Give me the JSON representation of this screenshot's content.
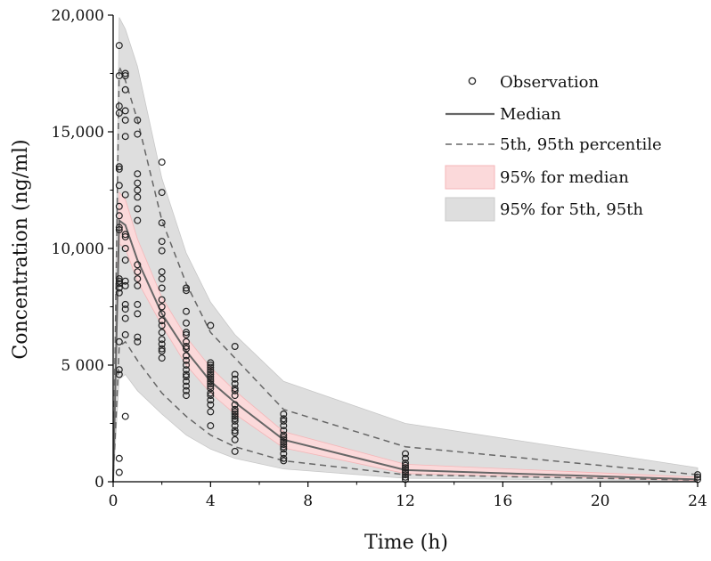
{
  "chart_data": {
    "type": "line",
    "xlabel": "Time (h)",
    "ylabel": "Concentration (ng/ml)",
    "xlim": [
      0,
      24
    ],
    "ylim": [
      0,
      20000
    ],
    "x_ticks": [
      0,
      4,
      8,
      12,
      16,
      20,
      24
    ],
    "x_tick_labels": [
      "0",
      "4",
      "8",
      "12",
      "16",
      "20",
      "24"
    ],
    "y_ticks": [
      0,
      5000,
      10000,
      15000,
      20000
    ],
    "y_tick_labels": [
      "0",
      "5 000",
      "10,000",
      "15,000",
      "20,000"
    ],
    "grid": false,
    "legend_position": "top-right",
    "legend": {
      "observation": "Observation",
      "median": "Median",
      "percentile": "5th, 95th percentile",
      "median_ci": "95% for median",
      "percentile_ci": "95% for 5th, 95th"
    },
    "colors": {
      "median_ci_fill": "#fbd9da",
      "median_ci_stroke": "#f4b6b8",
      "percentile_ci_fill": "#dedede",
      "percentile_ci_stroke": "#c8c8c8",
      "line": "#666666",
      "marker": "#222222"
    },
    "median": {
      "x": [
        0,
        0.25,
        0.5,
        1,
        2,
        3,
        4,
        5,
        7,
        12,
        24
      ],
      "y": [
        0,
        11200,
        11000,
        9500,
        7200,
        5600,
        4300,
        3400,
        1800,
        500,
        100
      ]
    },
    "p5": {
      "x": [
        0,
        0.25,
        0.5,
        1,
        2,
        3,
        4,
        5,
        7,
        12,
        24
      ],
      "y": [
        0,
        5800,
        6000,
        5200,
        3800,
        2800,
        2000,
        1500,
        900,
        300,
        70
      ]
    },
    "p95": {
      "x": [
        0,
        0.25,
        0.5,
        1,
        2,
        3,
        4,
        5,
        7,
        12,
        24
      ],
      "y": [
        0,
        17800,
        17200,
        15500,
        11200,
        8500,
        6400,
        5300,
        3100,
        1500,
        300
      ]
    },
    "median_ci": {
      "x": [
        0,
        0.25,
        0.5,
        1,
        2,
        3,
        4,
        5,
        7,
        12,
        24
      ],
      "lower": [
        0,
        10200,
        10000,
        8600,
        6700,
        5000,
        3800,
        2900,
        1450,
        350,
        50
      ],
      "upper": [
        0,
        12400,
        12100,
        10400,
        7900,
        6200,
        4900,
        3900,
        2150,
        750,
        200
      ]
    },
    "percentile_ci": {
      "p5_lower": [
        0,
        4400,
        4600,
        3900,
        2900,
        2000,
        1400,
        1000,
        550,
        150,
        20
      ],
      "p5_upper": [
        0,
        7000,
        7300,
        6300,
        4700,
        3500,
        2600,
        2000,
        1250,
        450,
        120
      ],
      "p95_lower": [
        0,
        15200,
        14800,
        13400,
        9700,
        7300,
        5500,
        4500,
        2650,
        1150,
        200
      ],
      "p95_upper": [
        0,
        19900,
        19400,
        17800,
        13000,
        9800,
        7700,
        6300,
        4300,
        2500,
        600
      ]
    },
    "observations": {
      "x": [
        0.25,
        0.25,
        0.25,
        0.25,
        0.25,
        0.25,
        0.25,
        0.25,
        0.25,
        0.25,
        0.25,
        0.25,
        0.25,
        0.25,
        0.25,
        0.25,
        0.25,
        0.25,
        0.25,
        0.25,
        0.25,
        0.5,
        0.5,
        0.5,
        0.5,
        0.5,
        0.5,
        0.5,
        0.5,
        0.5,
        0.5,
        0.5,
        0.5,
        0.5,
        0.5,
        0.5,
        0.5,
        0.5,
        0.5,
        1,
        1,
        1,
        1,
        1,
        1,
        1,
        1,
        1,
        1,
        1,
        1,
        1,
        1,
        1,
        1,
        2,
        2,
        2,
        2,
        2,
        2,
        2,
        2,
        2,
        2,
        2,
        2,
        2,
        2,
        2,
        2,
        2,
        2,
        2,
        3,
        3,
        3,
        3,
        3,
        3,
        3,
        3,
        3,
        3,
        3,
        3,
        3,
        3,
        3,
        3,
        3,
        3,
        3,
        4,
        4,
        4,
        4,
        4,
        4,
        4,
        4,
        4,
        4,
        4,
        4,
        4,
        4,
        4,
        4,
        4,
        4,
        4,
        5,
        5,
        5,
        5,
        5,
        5,
        5,
        5,
        5,
        5,
        5,
        5,
        5,
        5,
        5,
        5,
        5,
        5,
        5,
        7,
        7,
        7,
        7,
        7,
        7,
        7,
        7,
        7,
        7,
        7,
        7,
        7,
        7,
        7,
        12,
        12,
        12,
        12,
        12,
        12,
        12,
        12,
        12,
        12,
        24,
        24,
        24
      ],
      "y": [
        18700,
        17400,
        16100,
        15800,
        13500,
        13400,
        12700,
        11800,
        11400,
        10900,
        8700,
        8600,
        8500,
        8300,
        8100,
        6000,
        4800,
        4600,
        1000,
        400,
        10800,
        17500,
        17400,
        16800,
        15900,
        15500,
        14800,
        12300,
        10600,
        10500,
        10000,
        9500,
        8600,
        8400,
        7600,
        7400,
        7000,
        6300,
        2800,
        15500,
        14900,
        13200,
        12800,
        12500,
        12200,
        11700,
        11200,
        9300,
        9000,
        8700,
        8400,
        7600,
        7200,
        6200,
        6000,
        13700,
        12400,
        11100,
        10300,
        9900,
        9000,
        8700,
        8300,
        7800,
        7500,
        7200,
        6900,
        6700,
        6400,
        6100,
        5900,
        5600,
        5300,
        5700,
        8300,
        8200,
        7300,
        6800,
        6300,
        5800,
        5700,
        5400,
        5200,
        5000,
        4800,
        4500,
        4300,
        4100,
        3900,
        3700,
        6400,
        6000,
        4600,
        6700,
        5100,
        5000,
        4900,
        4800,
        4700,
        4600,
        4500,
        4400,
        4300,
        4200,
        4100,
        4000,
        3800,
        3700,
        3500,
        3300,
        3000,
        2400,
        5800,
        4600,
        4400,
        4200,
        4000,
        3900,
        3700,
        3300,
        3100,
        3000,
        2900,
        2800,
        2700,
        2600,
        2400,
        2200,
        2100,
        1800,
        1300,
        2900,
        2700,
        2600,
        2400,
        2200,
        2000,
        1900,
        1800,
        1700,
        1600,
        1500,
        1400,
        1200,
        1000,
        900,
        1200,
        1000,
        800,
        700,
        600,
        500,
        400,
        300,
        200,
        100,
        300,
        200,
        100
      ]
    }
  }
}
